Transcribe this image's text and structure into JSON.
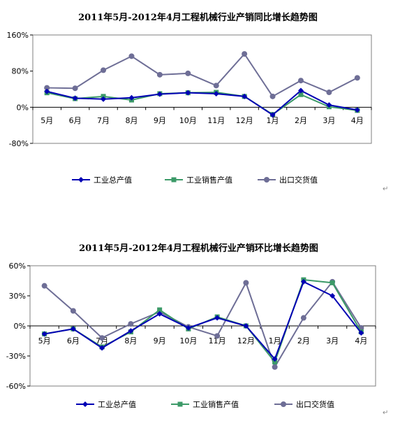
{
  "colors": {
    "industrial_output": "#0000b4",
    "industrial_sales": "#3c9a68",
    "export_delivery": "#6e6e96"
  },
  "chart_data": [
    {
      "type": "line",
      "title": "2011年5月-2012年4月工程机械行业产销同比增长趋势图",
      "categories": [
        "5月",
        "6月",
        "7月",
        "8月",
        "9月",
        "10月",
        "11月",
        "12月",
        "1月",
        "2月",
        "3月",
        "4月"
      ],
      "ylim": [
        -80,
        160
      ],
      "yticks": [
        "160%",
        "80%",
        "0%",
        "-80%"
      ],
      "ytick_values": [
        160,
        80,
        0,
        -80
      ],
      "grid": false,
      "legend": "bottom",
      "series": [
        {
          "name": "工业总产值",
          "values": [
            35,
            20,
            18,
            21,
            29,
            32,
            30,
            24,
            -17,
            37,
            5,
            -6
          ]
        },
        {
          "name": "工业销售产值",
          "values": [
            32,
            19,
            24,
            16,
            30,
            32,
            33,
            24,
            -16,
            28,
            1,
            -7
          ]
        },
        {
          "name": "出口交货值",
          "values": [
            43,
            42,
            82,
            113,
            72,
            75,
            48,
            118,
            24,
            59,
            33,
            65
          ]
        }
      ]
    },
    {
      "type": "line",
      "title": "2011年5月-2012年4月工程机械行业产销环比增长趋势图",
      "categories": [
        "5月",
        "6月",
        "7月",
        "8月",
        "9月",
        "10月",
        "11月",
        "12月",
        "1月",
        "2月",
        "3月",
        "4月"
      ],
      "ylim": [
        -60,
        60
      ],
      "yticks": [
        "60%",
        "30%",
        "0%",
        "-30%",
        "-60%"
      ],
      "ytick_values": [
        60,
        30,
        0,
        -30,
        -60
      ],
      "grid": false,
      "legend": "bottom",
      "series": [
        {
          "name": "工业总产值",
          "values": [
            -8,
            -3,
            -22,
            -5,
            12,
            -2,
            8,
            0,
            -33,
            44,
            30,
            -7
          ]
        },
        {
          "name": "工业销售产值",
          "values": [
            -8,
            -3,
            -21,
            -6,
            16,
            -3,
            9,
            0,
            -36,
            46,
            43,
            -6
          ]
        },
        {
          "name": "出口交货值",
          "values": [
            40,
            15,
            -12,
            2,
            14,
            -1,
            -10,
            43,
            -41,
            8,
            44,
            -2
          ]
        }
      ]
    }
  ]
}
